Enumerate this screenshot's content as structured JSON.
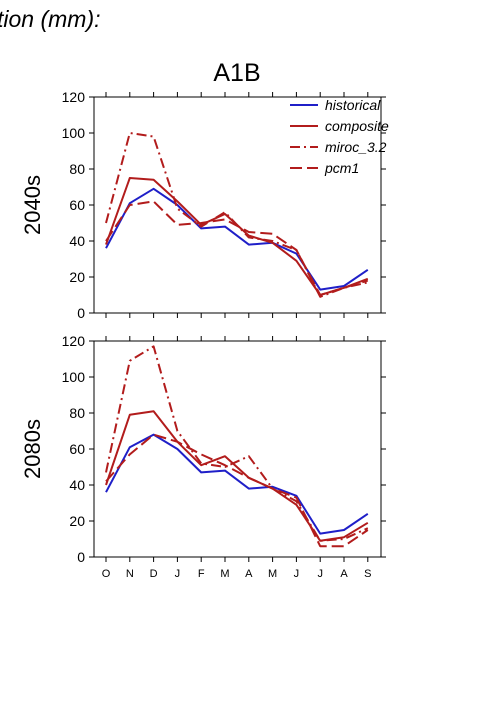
{
  "page": {
    "header_fragment": "tion (mm):",
    "scenario_title": "A1B"
  },
  "legend": [
    {
      "label": "historical",
      "color": "#1f1fc8",
      "dash": "solid"
    },
    {
      "label": "composite",
      "color": "#b21c1c",
      "dash": "solid"
    },
    {
      "label": "miroc_3.2",
      "color": "#b21c1c",
      "dash": "dashdot"
    },
    {
      "label": "pcm1",
      "color": "#b21c1c",
      "dash": "dashed"
    }
  ],
  "chart_data": [
    {
      "type": "line",
      "title": "A1B",
      "ylabel": "2040s",
      "xlabel": "",
      "ylim": [
        0,
        120
      ],
      "yticks": [
        0,
        20,
        40,
        60,
        80,
        100,
        120
      ],
      "categories": [
        "O",
        "N",
        "D",
        "J",
        "F",
        "M",
        "A",
        "M",
        "J",
        "J",
        "A",
        "S"
      ],
      "show_xtick_labels": false,
      "legend_position": "top-right",
      "grid": false,
      "series": [
        {
          "name": "historical",
          "values": [
            36,
            61,
            69,
            60,
            47,
            48,
            38,
            39,
            33,
            13,
            15,
            24
          ]
        },
        {
          "name": "composite",
          "values": [
            38,
            75,
            74,
            62,
            49,
            55,
            43,
            39,
            29,
            10,
            14,
            19
          ]
        },
        {
          "name": "miroc_3.2",
          "values": [
            50,
            100,
            98,
            58,
            48,
            56,
            42,
            40,
            35,
            9,
            14,
            17
          ]
        },
        {
          "name": "pcm1",
          "values": [
            40,
            60,
            62,
            49,
            50,
            52,
            45,
            44,
            35,
            10,
            14,
            18
          ]
        }
      ]
    },
    {
      "type": "line",
      "title": "",
      "ylabel": "2080s",
      "xlabel": "",
      "ylim": [
        0,
        120
      ],
      "yticks": [
        0,
        20,
        40,
        60,
        80,
        100,
        120
      ],
      "categories": [
        "O",
        "N",
        "D",
        "J",
        "F",
        "M",
        "A",
        "M",
        "J",
        "J",
        "A",
        "S"
      ],
      "show_xtick_labels": true,
      "grid": false,
      "series": [
        {
          "name": "historical",
          "values": [
            36,
            61,
            68,
            60,
            47,
            48,
            38,
            39,
            34,
            13,
            15,
            24
          ]
        },
        {
          "name": "composite",
          "values": [
            40,
            79,
            81,
            64,
            51,
            56,
            44,
            38,
            29,
            9,
            11,
            19
          ]
        },
        {
          "name": "miroc_3.2",
          "values": [
            47,
            109,
            117,
            70,
            52,
            50,
            56,
            38,
            31,
            9,
            10,
            16
          ]
        },
        {
          "name": "pcm1",
          "values": [
            42,
            57,
            68,
            64,
            57,
            51,
            44,
            38,
            33,
            6,
            6,
            15
          ]
        }
      ]
    }
  ]
}
